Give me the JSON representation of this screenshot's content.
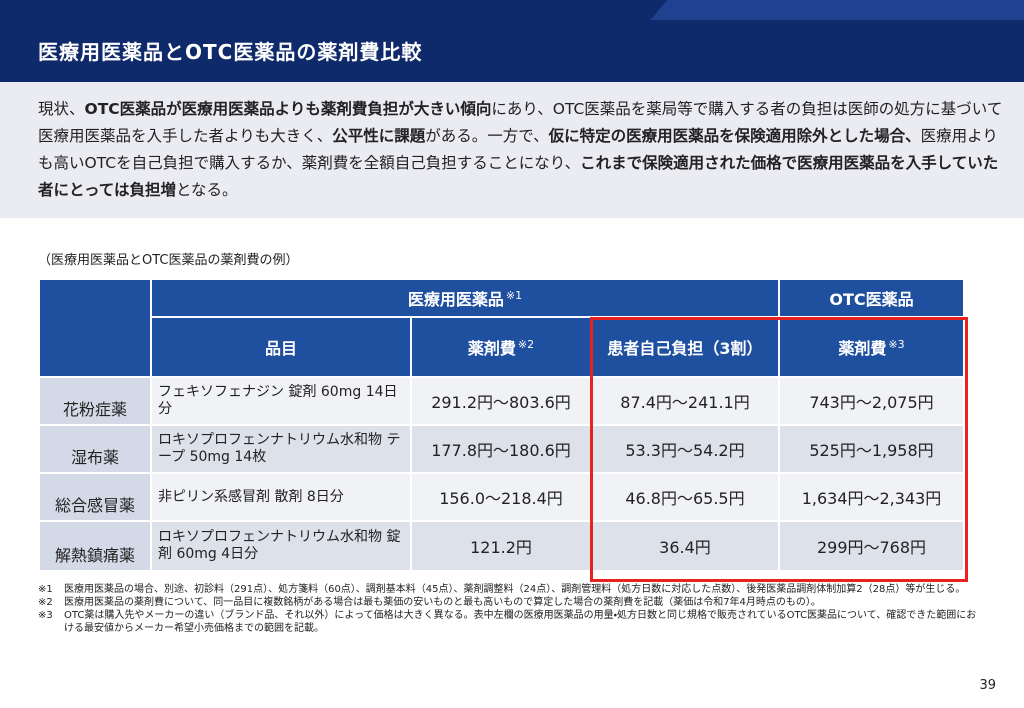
{
  "header": {
    "title": "医療用医薬品とOTC医薬品の薬剤費比較"
  },
  "summary": {
    "segments": [
      {
        "text": "現状、",
        "bold": false
      },
      {
        "text": "OTC医薬品が医療用医薬品よりも薬剤費負担が大きい傾向",
        "bold": true
      },
      {
        "text": "にあり、OTC医薬品を薬局等で購入する者の負担は医師の処方に基づいて医療用医薬品を入手した者よりも大きく、",
        "bold": false
      },
      {
        "text": "公平性に課題",
        "bold": true
      },
      {
        "text": "がある。一方で、",
        "bold": false
      },
      {
        "text": "仮に特定の医療用医薬品を保険適用除外とした場合、",
        "bold": true
      },
      {
        "text": "医療用よりも高いOTCを自己負担で購入するか、薬剤費を全額自己負担することになり、",
        "bold": false
      },
      {
        "text": "これまで保険適用された価格で医療用医薬品を入手していた者にとっては負担増",
        "bold": true
      },
      {
        "text": "となる。",
        "bold": false
      }
    ]
  },
  "caption": "（医療用医薬品とOTC医薬品の薬剤費の例）",
  "table": {
    "group_headers": [
      {
        "text": "医療用医薬品",
        "note": "※1"
      },
      {
        "text": "OTC医薬品",
        "note": null
      }
    ],
    "columns": [
      {
        "text": "品目",
        "note": null
      },
      {
        "text": "薬剤費",
        "note": "※2"
      },
      {
        "text": "患者自己負担（3割）",
        "note": null
      },
      {
        "text": "薬剤費",
        "note": "※3"
      }
    ],
    "rows": [
      [
        "花粉症薬",
        "フェキソフェナジン 錠剤 60mg 14日分",
        "291.2円～803.6円",
        "87.4円～241.1円",
        "743円～2,075円"
      ],
      [
        "湿布薬",
        "ロキソプロフェンナトリウム水和物 テープ 50mg 14枚",
        "177.8円～180.6円",
        "53.3円～54.2円",
        "525円～1,958円"
      ],
      [
        "総合感冒薬",
        "非ピリン系感冒剤 散剤 8日分",
        "156.0～218.4円",
        "46.8円～65.5円",
        "1,634円～2,343円"
      ],
      [
        "解熱鎮痛薬",
        "ロキソプロフェンナトリウム水和物 錠剤 60mg 4日分",
        "121.2円",
        "36.4円",
        "299円～768円"
      ]
    ]
  },
  "footnotes": [
    {
      "mark": "※1",
      "text": "医療用医薬品の場合、別途、初診料（291点）、処方箋料（60点）、調剤基本料（45点）、薬剤調整料（24点）、調剤管理料（処方日数に対応した点数）、後発医薬品調剤体制加算2（28点）等が生じる。"
    },
    {
      "mark": "※2",
      "text": "医療用医薬品の薬剤費について、同一品目に複数銘柄がある場合は最も薬価の安いものと最も高いもので算定した場合の薬剤費を記載（薬価は令和7年4月時点のもの）。"
    },
    {
      "mark": "※3",
      "text": "OTC薬は購入先やメーカーの違い（ブランド品、それ以外）によって価格は大きく異なる。表中左欄の医療用医薬品の用量・処方日数と同じ規格で販売されているOTC医薬品について、確認できた範囲における最安値からメーカー希望小売価格までの範囲を記載。"
    }
  ],
  "page_number": "39"
}
